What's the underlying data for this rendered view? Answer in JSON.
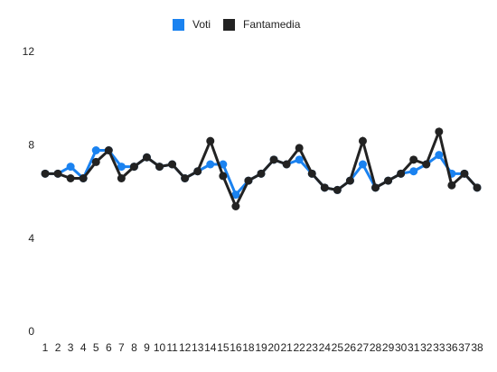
{
  "chart_data": {
    "type": "line",
    "categories": [
      "1",
      "2",
      "3",
      "4",
      "5",
      "6",
      "7",
      "8",
      "9",
      "10",
      "11",
      "12",
      "13",
      "14",
      "15",
      "16",
      "18",
      "19",
      "20",
      "21",
      "22",
      "23",
      "24",
      "25",
      "26",
      "27",
      "28",
      "29",
      "30",
      "31",
      "32",
      "33",
      "36",
      "37",
      "38"
    ],
    "series": [
      {
        "name": "Voti",
        "color": "#1a82f0",
        "values": [
          6.8,
          6.8,
          7.1,
          6.6,
          7.8,
          7.8,
          7.1,
          7.1,
          7.5,
          7.1,
          7.2,
          6.6,
          6.9,
          7.2,
          7.2,
          5.9,
          6.5,
          6.8,
          7.4,
          7.2,
          7.4,
          6.8,
          6.2,
          6.1,
          6.5,
          7.2,
          6.2,
          6.5,
          6.8,
          6.9,
          7.2,
          7.6,
          6.8,
          6.8,
          6.2
        ]
      },
      {
        "name": "Fantamedia",
        "color": "#222222",
        "values": [
          6.8,
          6.8,
          6.6,
          6.6,
          7.3,
          7.8,
          6.6,
          7.1,
          7.5,
          7.1,
          7.2,
          6.6,
          6.9,
          8.2,
          6.7,
          5.4,
          6.5,
          6.8,
          7.4,
          7.2,
          7.9,
          6.8,
          6.2,
          6.1,
          6.5,
          8.2,
          6.2,
          6.5,
          6.8,
          7.4,
          7.2,
          8.6,
          6.3,
          6.8,
          6.2
        ]
      }
    ],
    "ylim": [
      0,
      12
    ],
    "yticks": [
      0,
      4,
      8,
      12
    ]
  }
}
